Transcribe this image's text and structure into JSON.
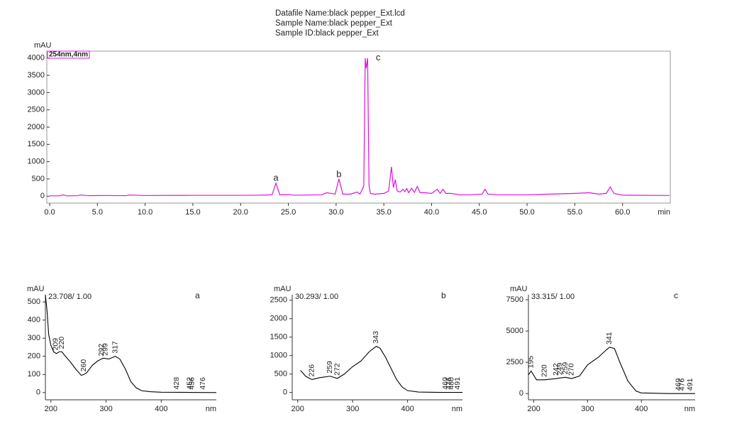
{
  "header": [
    "Datafile Name:black pepper_Ext.lcd",
    "Sample Name:black pepper_Ext",
    "Sample ID:black pepper_Ext"
  ],
  "chart_data": [
    {
      "type": "line",
      "ylabel": "mAU",
      "xlabel": "min",
      "xlim": [
        0,
        65
      ],
      "ylim": [
        -200,
        4200
      ],
      "xticks": [
        {
          "value": 0,
          "label": "0.0"
        },
        {
          "value": 5,
          "label": "5.0"
        },
        {
          "value": 10,
          "label": "10.0"
        },
        {
          "value": 15,
          "label": "15.0"
        },
        {
          "value": 20,
          "label": "20.0"
        },
        {
          "value": 25,
          "label": "25.0"
        },
        {
          "value": 30,
          "label": "30.0"
        },
        {
          "value": 35,
          "label": "35.0"
        },
        {
          "value": 40,
          "label": "40.0"
        },
        {
          "value": 45,
          "label": "45.0"
        },
        {
          "value": 50,
          "label": "50.0"
        },
        {
          "value": 55,
          "label": "55.0"
        },
        {
          "value": 60,
          "label": "60.0"
        }
      ],
      "yticks": [
        0,
        500,
        1000,
        1500,
        2000,
        2500,
        3000,
        3500,
        4000
      ],
      "x": [
        0,
        1,
        1.4,
        1.8,
        3,
        3.2,
        4,
        6,
        8,
        8.3,
        10,
        15,
        20,
        22,
        23.3,
        23.7,
        24.1,
        25,
        25.5,
        26,
        28.5,
        29,
        29.9,
        30.3,
        30.7,
        31.5,
        32.2,
        32.5,
        32.9,
        33.05,
        33.15,
        33.3,
        33.45,
        33.6,
        34,
        35,
        35.5,
        35.8,
        36,
        36.2,
        36.4,
        36.7,
        37,
        37.2,
        37.4,
        37.6,
        37.9,
        38.2,
        38.5,
        38.8,
        39.3,
        40,
        40.6,
        40.9,
        41.2,
        41.5,
        42,
        43,
        44,
        45.3,
        45.6,
        45.9,
        47,
        50,
        55,
        56.5,
        57,
        57.5,
        58.3,
        58.7,
        59.1,
        60,
        64.9
      ],
      "series": [
        {
          "name": "254nm,4nm",
          "color": "#e010e0",
          "values": [
            10,
            10,
            40,
            10,
            15,
            35,
            15,
            20,
            15,
            35,
            20,
            25,
            25,
            30,
            40,
            380,
            40,
            50,
            30,
            30,
            40,
            100,
            60,
            500,
            60,
            60,
            120,
            60,
            300,
            4000,
            3700,
            4000,
            300,
            80,
            60,
            80,
            150,
            850,
            250,
            480,
            150,
            120,
            200,
            130,
            220,
            100,
            230,
            110,
            280,
            100,
            100,
            80,
            200,
            80,
            200,
            80,
            80,
            40,
            40,
            60,
            200,
            60,
            40,
            40,
            80,
            100,
            80,
            60,
            80,
            270,
            80,
            30,
            20
          ]
        }
      ],
      "annotations": [
        {
          "text": "a",
          "x": 23.7,
          "y": 520
        },
        {
          "text": "b",
          "x": 30.3,
          "y": 620
        },
        {
          "text": "c",
          "x": 34.4,
          "y": 4000
        }
      ]
    },
    {
      "type": "line",
      "ylabel": "mAU",
      "xlabel": "nm",
      "subtitle": "23.708/ 1.00",
      "label": "a",
      "color": "#000000",
      "xlim": [
        190,
        500
      ],
      "ylim": [
        -40,
        540
      ],
      "xticks": [
        200,
        300,
        400
      ],
      "yticks": [
        0,
        100,
        200,
        300,
        400,
        500
      ],
      "x": [
        190,
        193,
        196,
        200,
        205,
        210,
        215,
        220,
        225,
        235,
        245,
        255,
        260,
        265,
        275,
        285,
        295,
        305,
        317,
        325,
        335,
        345,
        355,
        365,
        380,
        400,
        450,
        500
      ],
      "values": [
        540,
        450,
        320,
        260,
        225,
        215,
        225,
        225,
        205,
        170,
        130,
        95,
        100,
        110,
        150,
        175,
        190,
        185,
        200,
        185,
        130,
        60,
        25,
        10,
        5,
        2,
        1,
        0
      ],
      "peak_labels": [
        209,
        220,
        260,
        292,
        299,
        317,
        428,
        452,
        456,
        476
      ]
    },
    {
      "type": "line",
      "ylabel": "mAU",
      "xlabel": "nm",
      "subtitle": "30.293/ 1.00",
      "label": "b",
      "color": "#000000",
      "xlim": [
        190,
        500
      ],
      "ylim": [
        -200,
        2650
      ],
      "xticks": [
        200,
        300,
        400
      ],
      "yticks": [
        0,
        500,
        1000,
        1500,
        2000,
        2500
      ],
      "x": [
        205,
        215,
        226,
        240,
        259,
        272,
        285,
        300,
        315,
        330,
        343,
        350,
        360,
        370,
        380,
        390,
        400,
        420,
        460,
        500
      ],
      "values": [
        600,
        430,
        350,
        400,
        440,
        380,
        500,
        700,
        850,
        1100,
        1250,
        1200,
        950,
        650,
        350,
        150,
        50,
        10,
        0,
        0
      ],
      "peak_labels": [
        226,
        259,
        272,
        343,
        469,
        476,
        480,
        491
      ]
    },
    {
      "type": "line",
      "ylabel": "mAU",
      "xlabel": "nm",
      "subtitle": "33.315/ 1.00",
      "label": "c",
      "color": "#000000",
      "xlim": [
        190,
        500
      ],
      "ylim": [
        -500,
        7900
      ],
      "xticks": [
        200,
        300,
        400
      ],
      "yticks": [
        0,
        2500,
        5000,
        7500
      ],
      "x": [
        190,
        195,
        205,
        220,
        242,
        249,
        259,
        270,
        285,
        300,
        320,
        335,
        341,
        350,
        360,
        375,
        390,
        400,
        450,
        500
      ],
      "values": [
        1500,
        1800,
        1100,
        1100,
        1200,
        1250,
        1300,
        1200,
        1400,
        2300,
        2900,
        3500,
        3700,
        3600,
        2500,
        1000,
        200,
        50,
        0,
        0
      ],
      "peak_labels": [
        195,
        220,
        242,
        249,
        259,
        270,
        341,
        469,
        476,
        491
      ]
    }
  ]
}
